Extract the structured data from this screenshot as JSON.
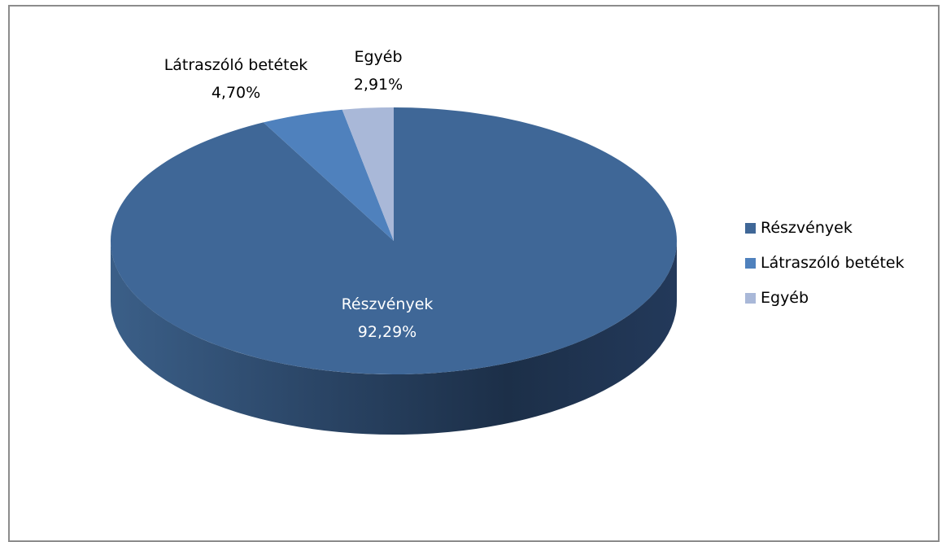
{
  "chart_data": {
    "type": "pie",
    "style": "3d",
    "slices": [
      {
        "label": "Részvények",
        "value": 92.29,
        "value_text": "92,29%",
        "color": "#3f6797"
      },
      {
        "label": "Látraszóló betétek",
        "value": 4.7,
        "value_text": "4,70%",
        "color": "#4f81bd"
      },
      {
        "label": "Egyéb",
        "value": 2.91,
        "value_text": "2,91%",
        "color": "#a9b8d8"
      }
    ],
    "legend": {
      "position": "right",
      "entries": [
        "Részvények",
        "Látraszóló betétek",
        "Egyéb"
      ]
    }
  }
}
